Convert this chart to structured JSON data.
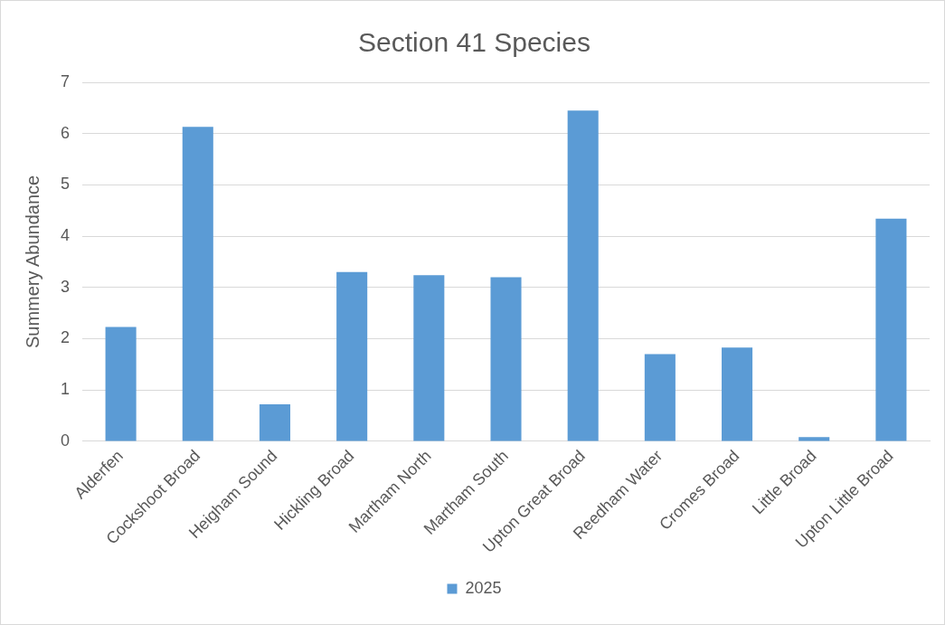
{
  "chart_data": {
    "type": "bar",
    "title": "Section 41 Species",
    "ylabel": "Summery Abundance",
    "categories": [
      "Alderfen",
      "Cockshoot Broad",
      "Heigham Sound",
      "Hickling Broad",
      "Martham North",
      "Martham South",
      "Upton Great Broad",
      "Reedham Water",
      "Cromes Broad",
      "Little Broad",
      "Upton Little Broad"
    ],
    "series": [
      {
        "name": "2025",
        "color": "#5b9bd5",
        "values": [
          2.23,
          6.13,
          0.72,
          3.3,
          3.24,
          3.2,
          6.45,
          1.7,
          1.83,
          0.08,
          4.34
        ]
      }
    ],
    "ylim": [
      0,
      7
    ],
    "yticks": [
      0,
      1,
      2,
      3,
      4,
      5,
      6,
      7
    ],
    "grid": "y",
    "legend": "bottom"
  }
}
